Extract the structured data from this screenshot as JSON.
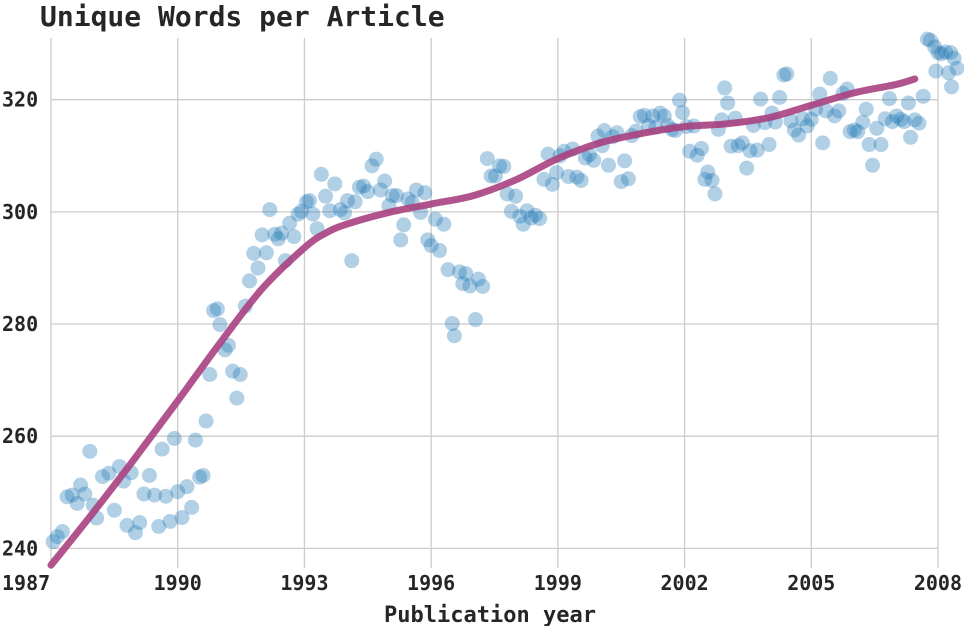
{
  "chart_data": {
    "type": "scatter",
    "title": "Unique Words per Article",
    "xlabel": "Publication year",
    "ylabel": "",
    "xlim": [
      1987,
      2008
    ],
    "ylim": [
      236.5,
      331
    ],
    "xticks": [
      1987,
      1990,
      1993,
      1996,
      1999,
      2002,
      2005,
      2008
    ],
    "yticks": [
      240,
      260,
      280,
      300,
      320
    ],
    "grid": true,
    "legend": "none",
    "colors": {
      "points": "#1f77b4",
      "trend": "#a8407f"
    },
    "series": [
      {
        "kind": "scatter",
        "points": [
          [
            1987.05,
            241.2
          ],
          [
            1987.15,
            242.1
          ],
          [
            1987.27,
            243
          ],
          [
            1987.38,
            249.2
          ],
          [
            1987.5,
            249.5
          ],
          [
            1987.62,
            248
          ],
          [
            1987.7,
            251.3
          ],
          [
            1987.8,
            249.7
          ],
          [
            1987.92,
            257.3
          ],
          [
            1988.0,
            247.7
          ],
          [
            1988.08,
            245.4
          ],
          [
            1988.22,
            252.8
          ],
          [
            1988.37,
            253.4
          ],
          [
            1988.5,
            246.8
          ],
          [
            1988.62,
            254.6
          ],
          [
            1988.72,
            252
          ],
          [
            1988.8,
            244.1
          ],
          [
            1988.9,
            253.5
          ],
          [
            1989.0,
            242.8
          ],
          [
            1989.1,
            244.6
          ],
          [
            1989.2,
            249.7
          ],
          [
            1989.33,
            253
          ],
          [
            1989.45,
            249.5
          ],
          [
            1989.55,
            243.9
          ],
          [
            1989.63,
            257.7
          ],
          [
            1989.72,
            249.3
          ],
          [
            1989.82,
            244.8
          ],
          [
            1989.92,
            259.6
          ],
          [
            1990.0,
            250.1
          ],
          [
            1990.1,
            245.5
          ],
          [
            1990.22,
            251
          ],
          [
            1990.33,
            247.3
          ],
          [
            1990.42,
            259.3
          ],
          [
            1990.52,
            252.7
          ],
          [
            1990.6,
            253
          ],
          [
            1990.67,
            262.7
          ],
          [
            1990.76,
            271
          ],
          [
            1990.85,
            282.4
          ],
          [
            1990.94,
            282.7
          ],
          [
            1991.0,
            279.9
          ],
          [
            1991.12,
            275.4
          ],
          [
            1991.2,
            276.2
          ],
          [
            1991.3,
            271.6
          ],
          [
            1991.4,
            266.8
          ],
          [
            1991.48,
            271
          ],
          [
            1991.6,
            283.2
          ],
          [
            1991.7,
            287.7
          ],
          [
            1991.8,
            292.6
          ],
          [
            1991.9,
            290
          ],
          [
            1992.0,
            295.9
          ],
          [
            1992.1,
            292.7
          ],
          [
            1992.18,
            300.4
          ],
          [
            1992.3,
            296
          ],
          [
            1992.38,
            295.2
          ],
          [
            1992.46,
            296.2
          ],
          [
            1992.55,
            291.3
          ],
          [
            1992.65,
            298
          ],
          [
            1992.75,
            295.6
          ],
          [
            1992.85,
            299.6
          ],
          [
            1992.93,
            300.1
          ],
          [
            1993.05,
            301.8
          ],
          [
            1993.12,
            302
          ],
          [
            1993.2,
            299.6
          ],
          [
            1993.3,
            297
          ],
          [
            1993.4,
            306.7
          ],
          [
            1993.5,
            302.8
          ],
          [
            1993.6,
            300.2
          ],
          [
            1993.72,
            305
          ],
          [
            1993.85,
            300.4
          ],
          [
            1993.95,
            299.8
          ],
          [
            1994.02,
            302
          ],
          [
            1994.12,
            291.3
          ],
          [
            1994.2,
            301.8
          ],
          [
            1994.3,
            304.4
          ],
          [
            1994.4,
            304.6
          ],
          [
            1994.5,
            303.6
          ],
          [
            1994.6,
            308.2
          ],
          [
            1994.7,
            309.4
          ],
          [
            1994.8,
            303.9
          ],
          [
            1994.9,
            305.5
          ],
          [
            1995.0,
            301.1
          ],
          [
            1995.08,
            302.9
          ],
          [
            1995.18,
            302.9
          ],
          [
            1995.28,
            295
          ],
          [
            1995.35,
            297.7
          ],
          [
            1995.45,
            302.3
          ],
          [
            1995.55,
            301.7
          ],
          [
            1995.65,
            303.9
          ],
          [
            1995.75,
            299.9
          ],
          [
            1995.85,
            303.4
          ],
          [
            1995.92,
            295
          ],
          [
            1996.0,
            294
          ],
          [
            1996.1,
            298.7
          ],
          [
            1996.2,
            293.1
          ],
          [
            1996.3,
            297.8
          ],
          [
            1996.4,
            289.7
          ],
          [
            1996.5,
            280.1
          ],
          [
            1996.55,
            277.9
          ],
          [
            1996.67,
            289.3
          ],
          [
            1996.75,
            287.2
          ],
          [
            1996.82,
            289
          ],
          [
            1996.92,
            286.8
          ],
          [
            1997.05,
            280.8
          ],
          [
            1997.12,
            288
          ],
          [
            1997.22,
            286.7
          ],
          [
            1997.33,
            309.5
          ],
          [
            1997.42,
            306.4
          ],
          [
            1997.52,
            306.4
          ],
          [
            1997.62,
            308.2
          ],
          [
            1997.72,
            308.1
          ],
          [
            1997.8,
            303.2
          ],
          [
            1997.9,
            300.1
          ],
          [
            1998.0,
            302.8
          ],
          [
            1998.1,
            299.2
          ],
          [
            1998.18,
            297.8
          ],
          [
            1998.27,
            300.2
          ],
          [
            1998.37,
            298.9
          ],
          [
            1998.47,
            299.4
          ],
          [
            1998.57,
            298.8
          ],
          [
            1998.67,
            305.8
          ],
          [
            1998.77,
            310.3
          ],
          [
            1998.87,
            304.9
          ],
          [
            1998.97,
            307
          ],
          [
            1999.05,
            310
          ],
          [
            1999.15,
            310.8
          ],
          [
            1999.25,
            306.3
          ],
          [
            1999.35,
            311.2
          ],
          [
            1999.45,
            306.2
          ],
          [
            1999.55,
            305.6
          ],
          [
            1999.65,
            309.6
          ],
          [
            1999.75,
            310.2
          ],
          [
            1999.85,
            309.2
          ],
          [
            1999.95,
            313.5
          ],
          [
            2000.05,
            311.8
          ],
          [
            2000.1,
            314.5
          ],
          [
            2000.2,
            308.3
          ],
          [
            2000.3,
            313.4
          ],
          [
            2000.4,
            314.1
          ],
          [
            2000.5,
            305.4
          ],
          [
            2000.58,
            309.1
          ],
          [
            2000.67,
            305.9
          ],
          [
            2000.75,
            313.6
          ],
          [
            2000.85,
            314.4
          ],
          [
            2000.95,
            317
          ],
          [
            2001.05,
            317.2
          ],
          [
            2001.15,
            315.3
          ],
          [
            2001.25,
            317.1
          ],
          [
            2001.32,
            315.1
          ],
          [
            2001.42,
            317.6
          ],
          [
            2001.52,
            317.1
          ],
          [
            2001.6,
            315.4
          ],
          [
            2001.7,
            314.7
          ],
          [
            2001.78,
            314.5
          ],
          [
            2001.88,
            319.9
          ],
          [
            2001.95,
            317.7
          ],
          [
            2002.05,
            315.2
          ],
          [
            2002.12,
            310.8
          ],
          [
            2002.22,
            315.3
          ],
          [
            2002.3,
            310.1
          ],
          [
            2002.4,
            311.3
          ],
          [
            2002.48,
            305.8
          ],
          [
            2002.55,
            307.1
          ],
          [
            2002.65,
            305.6
          ],
          [
            2002.72,
            303.2
          ],
          [
            2002.8,
            314.7
          ],
          [
            2002.88,
            316.4
          ],
          [
            2002.95,
            322.1
          ],
          [
            2003.02,
            319.4
          ],
          [
            2003.1,
            311.7
          ],
          [
            2003.2,
            316.7
          ],
          [
            2003.27,
            311.8
          ],
          [
            2003.37,
            312.3
          ],
          [
            2003.47,
            307.8
          ],
          [
            2003.55,
            310.9
          ],
          [
            2003.63,
            315.4
          ],
          [
            2003.72,
            311
          ],
          [
            2003.8,
            320.1
          ],
          [
            2003.9,
            315.9
          ],
          [
            2004.0,
            312
          ],
          [
            2004.07,
            317.6
          ],
          [
            2004.15,
            316
          ],
          [
            2004.25,
            320.4
          ],
          [
            2004.35,
            324.4
          ],
          [
            2004.42,
            324.6
          ],
          [
            2004.52,
            316.2
          ],
          [
            2004.6,
            314.6
          ],
          [
            2004.7,
            313.7
          ],
          [
            2004.8,
            316.6
          ],
          [
            2004.9,
            315.3
          ],
          [
            2005.0,
            316.5
          ],
          [
            2005.1,
            318.3
          ],
          [
            2005.2,
            321
          ],
          [
            2005.27,
            312.3
          ],
          [
            2005.35,
            318
          ],
          [
            2005.45,
            323.8
          ],
          [
            2005.55,
            317.1
          ],
          [
            2005.65,
            318
          ],
          [
            2005.75,
            321.1
          ],
          [
            2005.85,
            321.9
          ],
          [
            2005.92,
            314.3
          ],
          [
            2006.02,
            314.6
          ],
          [
            2006.1,
            314.3
          ],
          [
            2006.22,
            316
          ],
          [
            2006.3,
            318.3
          ],
          [
            2006.37,
            312
          ],
          [
            2006.45,
            308.3
          ],
          [
            2006.55,
            314.9
          ],
          [
            2006.65,
            312
          ],
          [
            2006.75,
            316.6
          ],
          [
            2006.85,
            320.2
          ],
          [
            2006.92,
            316.1
          ],
          [
            2007.02,
            317.1
          ],
          [
            2007.12,
            316.5
          ],
          [
            2007.2,
            316.1
          ],
          [
            2007.3,
            319.4
          ],
          [
            2007.35,
            313.3
          ],
          [
            2007.45,
            316.4
          ],
          [
            2007.55,
            315.8
          ],
          [
            2007.65,
            320.6
          ],
          [
            2007.75,
            330.8
          ],
          [
            2007.82,
            330.6
          ],
          [
            2007.92,
            329.4
          ],
          [
            2007.95,
            325.1
          ],
          [
            2008.0,
            328.4
          ],
          [
            2008.08,
            328.2
          ],
          [
            2008.18,
            328.5
          ],
          [
            2008.25,
            324.8
          ],
          [
            2008.3,
            328.4
          ],
          [
            2008.38,
            327.4
          ],
          [
            2008.45,
            325.6
          ],
          [
            2008.32,
            322.3
          ]
        ]
      },
      {
        "kind": "line",
        "points": [
          [
            1987,
            237
          ],
          [
            1988,
            246.4
          ],
          [
            1989,
            256.2
          ],
          [
            1990,
            266.3
          ],
          [
            1991,
            276.6
          ],
          [
            1992,
            286.3
          ],
          [
            1993,
            293.6
          ],
          [
            1993.5,
            296.2
          ],
          [
            1994,
            297.8
          ],
          [
            1995,
            299.9
          ],
          [
            1996,
            301.4
          ],
          [
            1997,
            302.9
          ],
          [
            1998,
            305.7
          ],
          [
            1999,
            309.5
          ],
          [
            2000,
            312.3
          ],
          [
            2001,
            314
          ],
          [
            2002,
            315.2
          ],
          [
            2003,
            315.7
          ],
          [
            2004,
            316.8
          ],
          [
            2005,
            319
          ],
          [
            2006,
            321.2
          ],
          [
            2007,
            322.7
          ],
          [
            2007.45,
            323.7
          ]
        ]
      }
    ]
  }
}
